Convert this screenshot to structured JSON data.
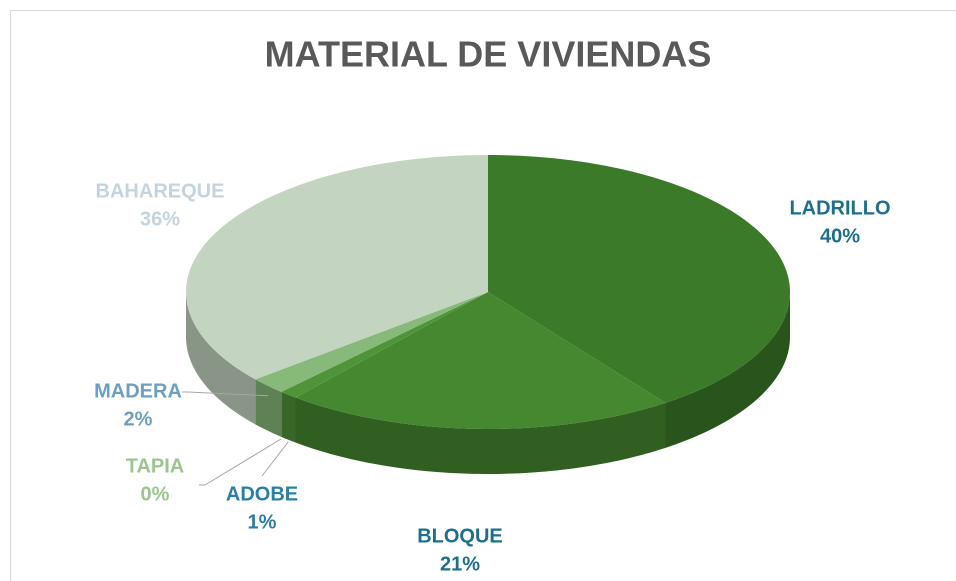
{
  "chart_data": {
    "type": "pie",
    "title": "MATERIAL DE VIVIENDAS",
    "categories": [
      "LADRILLO",
      "BLOQUE",
      "ADOBE",
      "TAPIA",
      "MADERA",
      "BAHAREQUE"
    ],
    "values": [
      40,
      21,
      1,
      0,
      2,
      36
    ],
    "value_labels": [
      "40%",
      "21%",
      "1%",
      "0%",
      "2%",
      "36%"
    ],
    "colors": [
      "#3b7a29",
      "#45882f",
      "#4f9438",
      "#7fb36d",
      "#86b97a",
      "#c3d5c0"
    ],
    "label_colors": [
      "#1d6f8c",
      "#1d6f8c",
      "#2a7fa6",
      "#9cc58f",
      "#6c9fc0",
      "#c3d4df"
    ]
  }
}
